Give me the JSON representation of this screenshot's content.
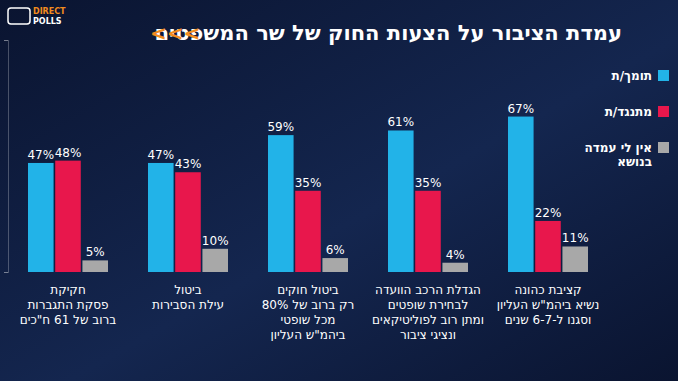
{
  "chart_data": {
    "type": "bar",
    "title": "עמדת הציבור על הצעות החוק של שר המשפטים",
    "annotations": [
      "<<<",
      "DIRECT",
      "POLLS"
    ],
    "categories": [
      "חקיקת\nפסקת התגברות\nברוב של 61 ח\"כים",
      "ביטול\nעילת הסבירות",
      "ביטול חוקים\nרק ברוב של 80%\nמכל שופטי\nביהמ\"ש העליון",
      "הגדלת הרכב הוועדה\nלבחירת שופטים\nומתן רוב לפוליטיקאים\nונציגי ציבור",
      "קציבת כהונה\nנשיא ביהמ\"ש העליון\nוסגנו ל-6-7 שנים"
    ],
    "series": [
      {
        "name": "תומך/ת",
        "color": "#22b3e8",
        "values": [
          47,
          47,
          59,
          61,
          67
        ],
        "value_labels": [
          "47%",
          "47%",
          "59%",
          "61%",
          "67%"
        ]
      },
      {
        "name": "מתנגד/ת",
        "color": "#e8174c",
        "values": [
          48,
          43,
          35,
          35,
          22
        ],
        "value_labels": [
          "48%",
          "43%",
          "35%",
          "35%",
          "22%"
        ]
      },
      {
        "name": "אין לי עמדה\nבנושא",
        "color": "#a8a8a8",
        "values": [
          5,
          10,
          6,
          4,
          11
        ],
        "value_labels": [
          "5%",
          "10%",
          "6%",
          "4%",
          "11%"
        ]
      }
    ],
    "ylim": [
      0,
      100
    ],
    "yticks": [
      0,
      100
    ],
    "tick_labels": false,
    "grid": false,
    "legend": "right",
    "data_labels": true
  }
}
